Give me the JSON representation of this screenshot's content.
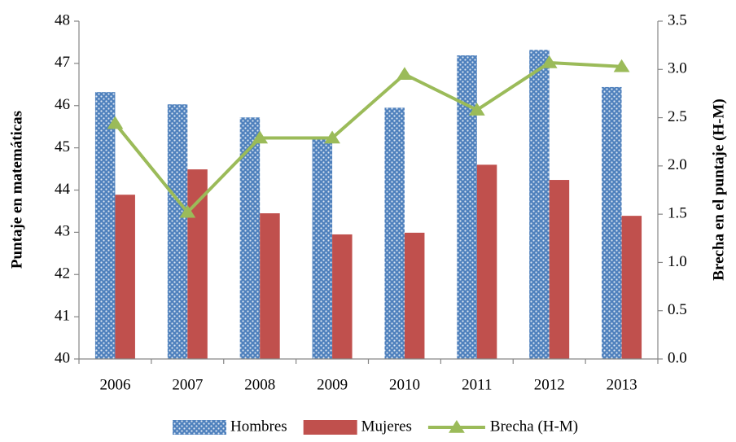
{
  "chart_data": {
    "type": "bar_line",
    "y_label": "Puntaje en matemáticas",
    "y2_label": "Brecha en el puntaje (H-M)",
    "categories": [
      "2006",
      "2007",
      "2008",
      "2009",
      "2010",
      "2011",
      "2012",
      "2013"
    ],
    "series": [
      {
        "name": "Hombres",
        "type": "bar",
        "color": "#4f81bd",
        "values": [
          46.32,
          46.03,
          45.72,
          45.22,
          45.95,
          47.19,
          47.32,
          46.44
        ]
      },
      {
        "name": "Mujeres",
        "type": "bar",
        "color": "#c0504d",
        "values": [
          43.89,
          44.49,
          43.45,
          42.95,
          42.99,
          44.6,
          44.24,
          43.39
        ]
      },
      {
        "name": "Brecha (H-M)",
        "type": "line",
        "axis": "y2",
        "color": "#9bbb59",
        "values": [
          2.44,
          1.52,
          2.29,
          2.29,
          2.95,
          2.58,
          3.07,
          3.03
        ]
      }
    ],
    "ylim": [
      40,
      48
    ],
    "yticks": [
      40,
      41,
      42,
      43,
      44,
      45,
      46,
      47,
      48
    ],
    "y2lim": [
      0,
      3.5
    ],
    "y2ticks": [
      {
        "value": 0,
        "label": "0.0"
      },
      0.5,
      {
        "value": 1,
        "label": "1.0"
      },
      1.5,
      {
        "value": 2,
        "label": "2.0"
      },
      2.5,
      {
        "value": 3,
        "label": "3.0"
      },
      3.5
    ],
    "legend": "bottom"
  }
}
